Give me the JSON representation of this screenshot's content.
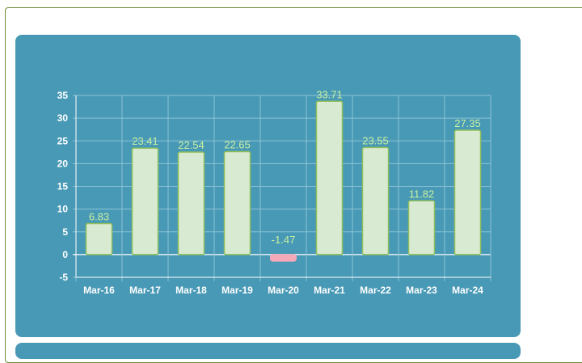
{
  "chart_data": {
    "type": "bar",
    "categories": [
      "Mar-16",
      "Mar-17",
      "Mar-18",
      "Mar-19",
      "Mar-20",
      "Mar-21",
      "Mar-22",
      "Mar-23",
      "Mar-24"
    ],
    "values": [
      6.83,
      23.41,
      22.54,
      22.65,
      -1.47,
      33.71,
      23.55,
      11.82,
      27.35
    ],
    "value_labels": [
      "6.83",
      "23.41",
      "22.54",
      "22.65",
      "-1.47",
      "33.71",
      "23.55",
      "11.82",
      "27.35"
    ],
    "y_ticks": [
      35,
      30,
      25,
      20,
      15,
      10,
      5,
      0,
      -5
    ],
    "ylim": [
      -5,
      35
    ],
    "grid": true,
    "colors": {
      "panel_bg": "#4899b6",
      "bar_fill": "#d9ead3",
      "bar_stroke": "#8fbf5a",
      "negative_fill": "#f4a8b8",
      "grid": "#8cc3d6",
      "label": "#c8f0a0",
      "axis": "#ffffff"
    }
  }
}
